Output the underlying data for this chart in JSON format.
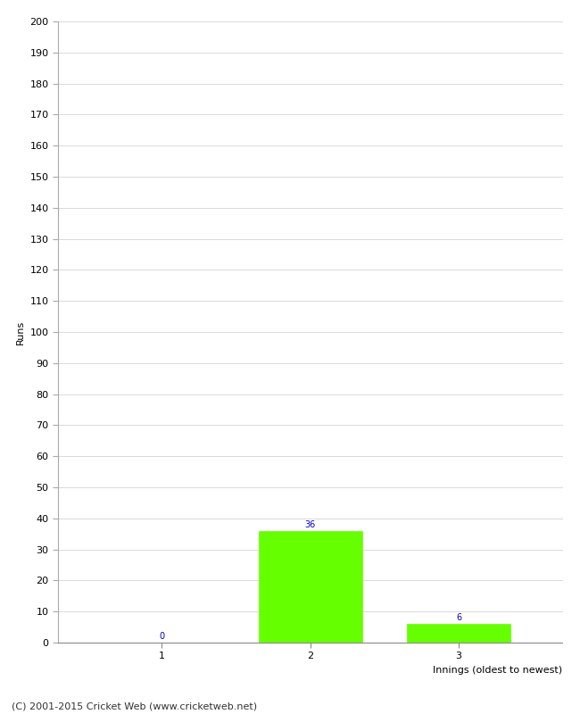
{
  "categories": [
    1,
    2,
    3
  ],
  "values": [
    0,
    36,
    6
  ],
  "bar_color": "#66ff00",
  "bar_edge_color": "#66ff00",
  "xlabel": "Innings (oldest to newest)",
  "ylabel": "Runs",
  "ylim": [
    0,
    200
  ],
  "yticks": [
    0,
    10,
    20,
    30,
    40,
    50,
    60,
    70,
    80,
    90,
    100,
    110,
    120,
    130,
    140,
    150,
    160,
    170,
    180,
    190,
    200
  ],
  "xticks": [
    1,
    2,
    3
  ],
  "annotation_color": "#0000cc",
  "annotation_fontsize": 7,
  "axis_label_fontsize": 8,
  "tick_fontsize": 8,
  "footer_text": "(C) 2001-2015 Cricket Web (www.cricketweb.net)",
  "footer_fontsize": 8,
  "background_color": "#ffffff",
  "grid_color": "#cccccc",
  "bar_width": 0.7
}
